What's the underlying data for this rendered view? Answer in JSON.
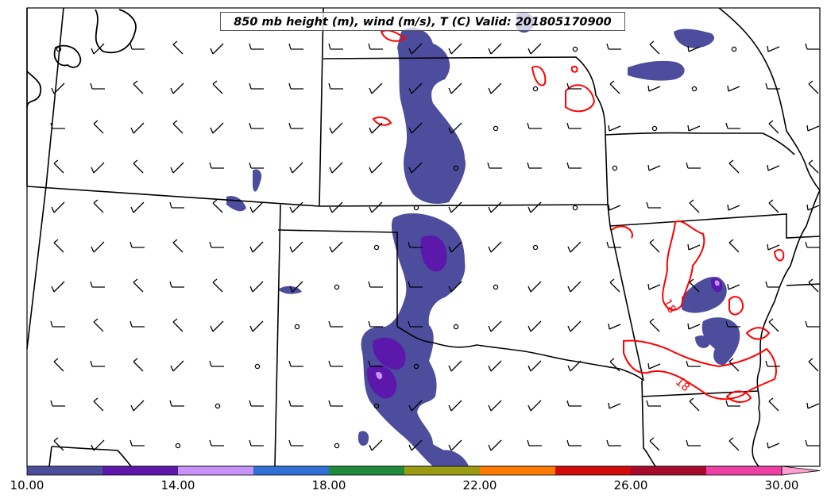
{
  "title": "850 mb height (m), wind (m/s), T (C) Valid: 201805170900",
  "contour_label": "18",
  "colorbar": {
    "ticks": [
      "10.00",
      "14.00",
      "18.00",
      "22.00",
      "26.00",
      "30.00"
    ],
    "colors": [
      "#4c4d9d",
      "#5b18ab",
      "#c792fa",
      "#3070d9",
      "#1e8a3a",
      "#9a9b12",
      "#ff7a00",
      "#d30a0a",
      "#a80a2b",
      "#ef3fa5",
      "#ff9fd2"
    ]
  },
  "colors": {
    "wind_speed_fill": "#4c4d9d",
    "wind_speed_fill_strong": "#5b18ab",
    "wind_speed_fill_peak": "#c792fa",
    "temperature_contour": "#ff0000",
    "borders": "#000000"
  }
}
